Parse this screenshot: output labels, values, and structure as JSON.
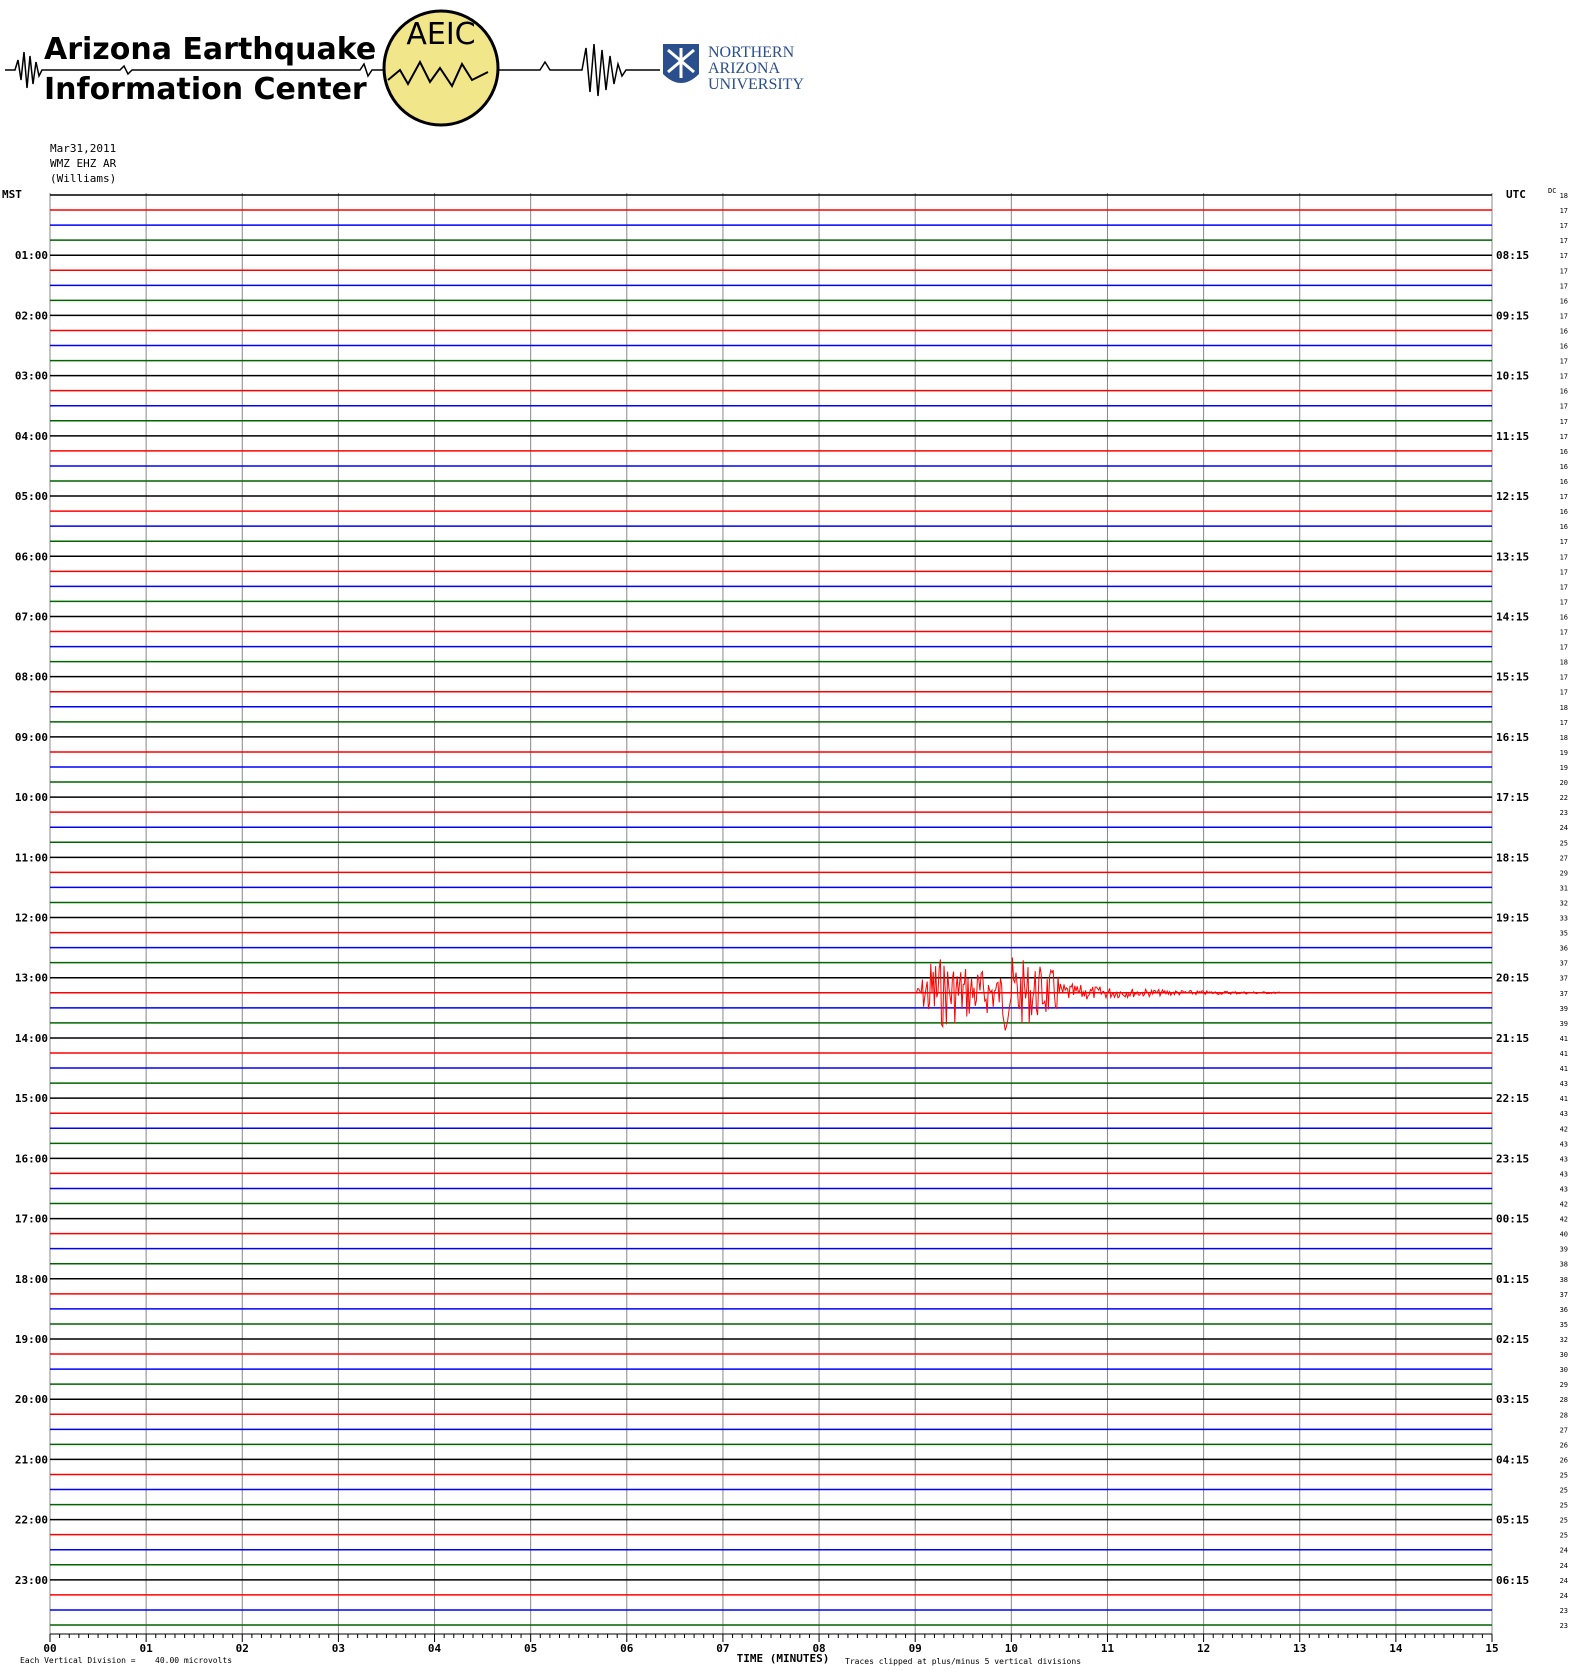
{
  "chart_data": {
    "type": "helicorder",
    "header": {
      "org_line1": "Arizona Earthquake",
      "org_line2": "Information Center",
      "logo_text": "AEIC",
      "univ_line1": "NORTHERN",
      "univ_line2": "ARIZONA",
      "univ_line3": "UNIVERSITY"
    },
    "date": "Mar31,2011",
    "station": "WMZ EHZ AR",
    "location": "(Williams)",
    "left_axis_title": "MST",
    "right_axis_title": "UTC",
    "dc_title": "DC",
    "mst_labels": [
      "01:00",
      "02:00",
      "03:00",
      "04:00",
      "05:00",
      "06:00",
      "07:00",
      "08:00",
      "09:00",
      "10:00",
      "11:00",
      "12:00",
      "13:00",
      "14:00",
      "15:00",
      "16:00",
      "17:00",
      "18:00",
      "19:00",
      "20:00",
      "21:00",
      "22:00",
      "23:00"
    ],
    "utc_labels": [
      "08:15",
      "09:15",
      "10:15",
      "11:15",
      "12:15",
      "13:15",
      "14:15",
      "15:15",
      "16:15",
      "17:15",
      "18:15",
      "19:15",
      "20:15",
      "21:15",
      "22:15",
      "23:15",
      "00:15",
      "01:15",
      "02:15",
      "03:15",
      "04:15",
      "05:15",
      "06:15"
    ],
    "dc_values": [
      18,
      17,
      17,
      17,
      17,
      17,
      17,
      16,
      17,
      16,
      16,
      17,
      17,
      16,
      17,
      17,
      17,
      16,
      16,
      16,
      17,
      16,
      16,
      17,
      17,
      17,
      17,
      17,
      16,
      17,
      17,
      18,
      17,
      17,
      18,
      17,
      18,
      19,
      19,
      20,
      22,
      23,
      24,
      25,
      27,
      29,
      31,
      32,
      33,
      35,
      36,
      37,
      37,
      37,
      39,
      39,
      41,
      41,
      41,
      43,
      41,
      43,
      42,
      43,
      43,
      43,
      43,
      42,
      42,
      40,
      39,
      38,
      38,
      37,
      36,
      35,
      32,
      30,
      30,
      29,
      28,
      28,
      27,
      26,
      26,
      25,
      25,
      25,
      25,
      25,
      24,
      24,
      24,
      24,
      23,
      23
    ],
    "trace_colors": [
      "#000000",
      "#ff0000",
      "#0000ff",
      "#006400"
    ],
    "xlim": [
      0,
      15
    ],
    "xticks": [
      {
        "value": 0,
        "label": "00"
      },
      {
        "value": 1,
        "label": "01"
      },
      {
        "value": 2,
        "label": "02"
      },
      {
        "value": 3,
        "label": "03"
      },
      {
        "value": 4,
        "label": "04"
      },
      {
        "value": 5,
        "label": "05"
      },
      {
        "value": 6,
        "label": "06"
      },
      {
        "value": 7,
        "label": "07"
      },
      {
        "value": 8,
        "label": "08"
      },
      {
        "value": 9,
        "label": "09"
      },
      10,
      11,
      12,
      13,
      14,
      15
    ],
    "x_axis_title": "TIME (MINUTES)",
    "footer_left": "Each Vertical Division =",
    "footer_scale": "40.00 microvolts",
    "footer_right": "Traces clipped at plus/minus 5 vertical divisions",
    "grid": true
  }
}
